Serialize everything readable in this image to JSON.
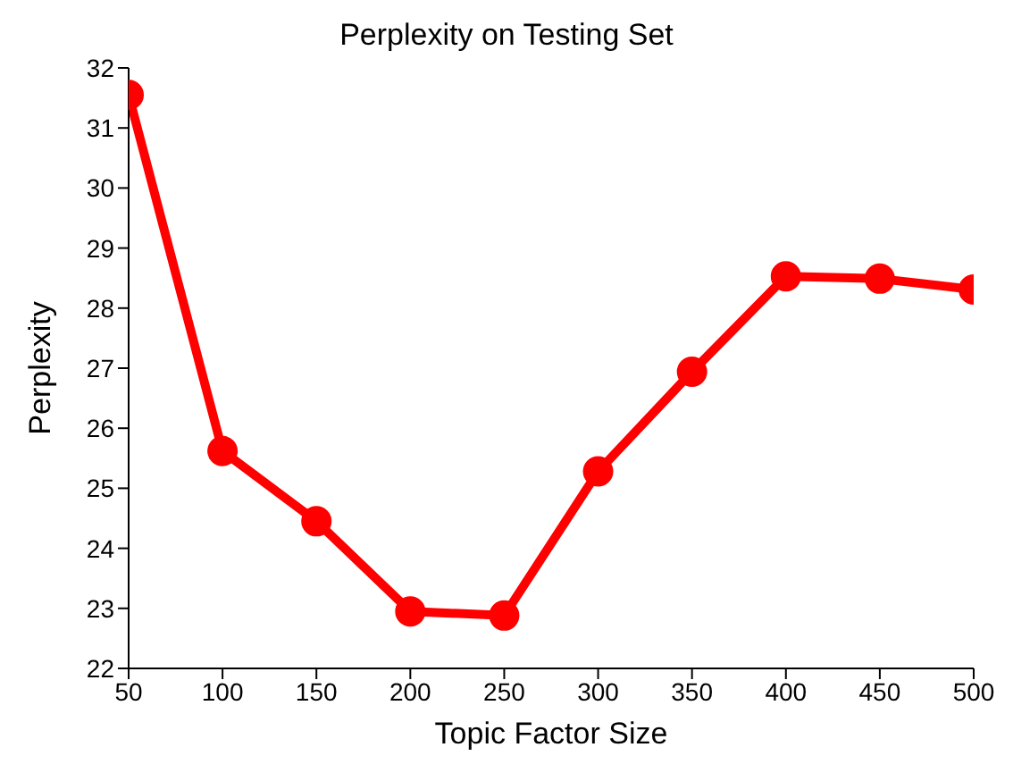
{
  "chart_data": {
    "type": "line",
    "title": "Perplexity on Testing Set",
    "xlabel": "Topic Factor Size",
    "ylabel": "Perplexity",
    "x": [
      50,
      100,
      150,
      200,
      250,
      300,
      350,
      400,
      450,
      500
    ],
    "series": [
      {
        "color": "#ff0000",
        "values": [
          31.55,
          25.62,
          24.45,
          22.95,
          22.88,
          25.28,
          26.94,
          28.53,
          28.49,
          28.31
        ]
      }
    ],
    "xlim": [
      50,
      500
    ],
    "xticks": [
      50,
      100,
      150,
      200,
      250,
      300,
      350,
      400,
      450,
      500
    ],
    "ylim": [
      22,
      32
    ],
    "yticks": [
      22,
      23,
      24,
      25,
      26,
      27,
      28,
      29,
      30,
      31,
      32
    ],
    "grid": false,
    "legend": false,
    "marker": "circle",
    "line_style": "solid"
  }
}
